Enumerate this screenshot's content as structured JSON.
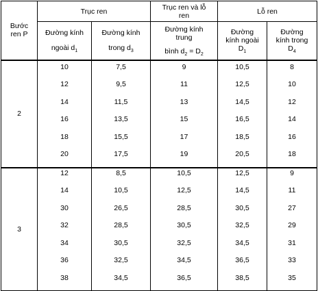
{
  "headers": {
    "pitch_line1": "Bước",
    "pitch_line2": "ren P",
    "bolt": "Trục ren",
    "bolt_and_nut_line1": "Trục ren và lỗ",
    "bolt_and_nut_line2": "ren",
    "nut": "Lỗ ren",
    "outer_d1_line1": "Đường kính",
    "outer_d1_line2": "ngoài d",
    "outer_d1_sub": "1",
    "inner_d3_line1": "Đường kính",
    "inner_d3_line2": "trong d",
    "inner_d3_sub": "3",
    "pitch_d2_line1": "Đường kính",
    "pitch_d2_line2": "trung",
    "pitch_d2_line3a": "bình d",
    "pitch_d2_sub2": "2",
    "pitch_d2_line3b": " = D",
    "pitch_d2_sub2b": "2",
    "outer_D1_line1": "Đường",
    "outer_D1_line2": "kính ngoài",
    "outer_D1_line3": "D",
    "outer_D1_sub": "1",
    "inner_D4_line1": "Đường",
    "inner_D4_line2": "kính trong",
    "inner_D4_line3": "D",
    "inner_D4_sub": "4"
  },
  "groups": [
    {
      "pitch": "2",
      "rows": [
        [
          "10",
          "7,5",
          "9",
          "10,5",
          "8"
        ],
        [
          "12",
          "9,5",
          "11",
          "12,5",
          "10"
        ],
        [
          "14",
          "11,5",
          "13",
          "14,5",
          "12"
        ],
        [
          "16",
          "13,5",
          "15",
          "16,5",
          "14"
        ],
        [
          "18",
          "15,5",
          "17",
          "18,5",
          "16"
        ],
        [
          "20",
          "17,5",
          "19",
          "20,5",
          "18"
        ]
      ]
    },
    {
      "pitch": "3",
      "rows": [
        [
          "12",
          "8,5",
          "10,5",
          "12,5",
          "9"
        ],
        [
          "14",
          "10,5",
          "12,5",
          "14,5",
          "11"
        ],
        [
          "30",
          "26,5",
          "28,5",
          "30,5",
          "27"
        ],
        [
          "32",
          "28,5",
          "30,5",
          "32,5",
          "29"
        ],
        [
          "34",
          "30,5",
          "32,5",
          "34,5",
          "31"
        ],
        [
          "36",
          "32,5",
          "34,5",
          "36,5",
          "33"
        ],
        [
          "38",
          "34,5",
          "36,5",
          "38,5",
          "35"
        ]
      ]
    }
  ]
}
